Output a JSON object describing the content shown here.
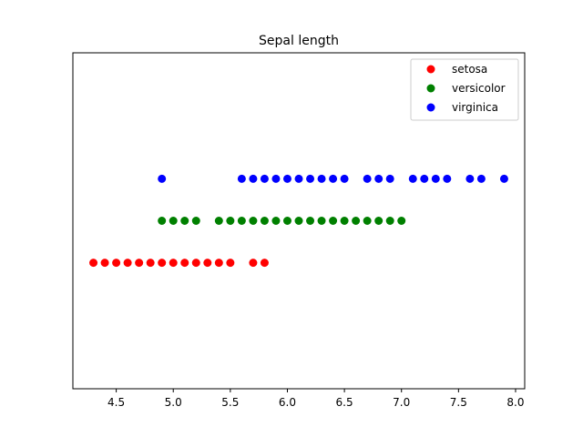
{
  "chart_data": {
    "type": "scatter",
    "title": "Sepal length",
    "xlabel": "",
    "ylabel": "",
    "xlim": [
      4.12,
      8.08
    ],
    "ylim": [
      -0.5,
      3.5
    ],
    "xticks": [
      4.5,
      5.0,
      5.5,
      6.0,
      6.5,
      7.0,
      7.5,
      8.0
    ],
    "xtick_labels": [
      "4.5",
      "5.0",
      "5.5",
      "6.0",
      "6.5",
      "7.0",
      "7.5",
      "8.0"
    ],
    "yticks_visible": false,
    "grid": false,
    "legend_position": "top-right",
    "series": [
      {
        "name": "setosa",
        "color": "#ff0000",
        "y": 1,
        "x": [
          4.3,
          4.4,
          4.5,
          4.6,
          4.7,
          4.8,
          4.9,
          5.0,
          5.1,
          5.2,
          5.3,
          5.4,
          5.5,
          5.7,
          5.8
        ]
      },
      {
        "name": "versicolor",
        "color": "#008000",
        "y": 1.5,
        "x": [
          4.9,
          5.0,
          5.1,
          5.2,
          5.4,
          5.5,
          5.6,
          5.7,
          5.8,
          5.9,
          6.0,
          6.1,
          6.2,
          6.3,
          6.4,
          6.5,
          6.6,
          6.7,
          6.8,
          6.9,
          7.0
        ]
      },
      {
        "name": "virginica",
        "color": "#0000ff",
        "y": 2,
        "x": [
          4.9,
          5.6,
          5.7,
          5.8,
          5.9,
          6.0,
          6.1,
          6.2,
          6.3,
          6.4,
          6.5,
          6.7,
          6.8,
          6.9,
          7.1,
          7.2,
          7.3,
          7.4,
          7.6,
          7.7,
          7.9
        ]
      }
    ]
  }
}
